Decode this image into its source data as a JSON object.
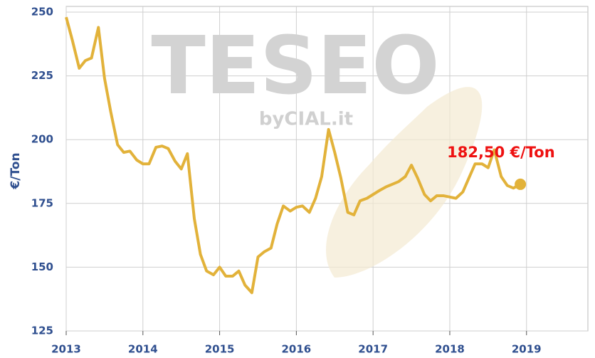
{
  "chart_data": {
    "type": "line",
    "y_label": "€/Ton",
    "watermark": "TESEO",
    "watermark_sub": "byCIAL.it",
    "x": [
      2013,
      2013.08,
      2013.17,
      2013.25,
      2013.33,
      2013.42,
      2013.5,
      2013.58,
      2013.67,
      2013.75,
      2013.83,
      2013.92,
      2014,
      2014.08,
      2014.17,
      2014.25,
      2014.33,
      2014.42,
      2014.5,
      2014.58,
      2014.67,
      2014.75,
      2014.83,
      2014.92,
      2015,
      2015.08,
      2015.17,
      2015.25,
      2015.33,
      2015.42,
      2015.5,
      2015.58,
      2015.67,
      2015.75,
      2015.83,
      2015.92,
      2016,
      2016.08,
      2016.17,
      2016.25,
      2016.33,
      2016.42,
      2016.5,
      2016.58,
      2016.67,
      2016.75,
      2016.83,
      2016.92,
      2017,
      2017.08,
      2017.17,
      2017.25,
      2017.33,
      2017.42,
      2017.5,
      2017.58,
      2017.67,
      2017.75,
      2017.83,
      2017.92,
      2018,
      2018.08,
      2018.17,
      2018.25,
      2018.33,
      2018.42,
      2018.5,
      2018.58,
      2018.67,
      2018.75,
      2018.83,
      2018.92
    ],
    "series": [
      {
        "color": "#e2b23a",
        "values": [
          248,
          239,
          228,
          231,
          232,
          244,
          224,
          211,
          198,
          195,
          195.5,
          192,
          190.5,
          190.5,
          197,
          197.5,
          196.5,
          191.5,
          188.5,
          194.5,
          169,
          155,
          148.5,
          147,
          150,
          146.5,
          146.5,
          148.5,
          143,
          140,
          154,
          156,
          157.5,
          167,
          174,
          172,
          173.5,
          174,
          171.5,
          177,
          185.5,
          204,
          195,
          185,
          171.5,
          170.5,
          176,
          177,
          178.5,
          180,
          181.5,
          182.5,
          183.5,
          185.5,
          190,
          185,
          178.5,
          176,
          178,
          178,
          177.5,
          177,
          179.5,
          185,
          190.5,
          190.5,
          189,
          196,
          185.5,
          182,
          181,
          182.5
        ]
      }
    ],
    "last_label": "182,50 €/Ton",
    "label_color": "#ee1111",
    "xlim": [
      2013,
      2019.8
    ],
    "xticks": [
      2013,
      2014,
      2015,
      2016,
      2017,
      2018,
      2019
    ],
    "ylim": [
      125,
      250
    ],
    "yticks": [
      125,
      150,
      175,
      200,
      225,
      250
    ],
    "grid": true
  }
}
